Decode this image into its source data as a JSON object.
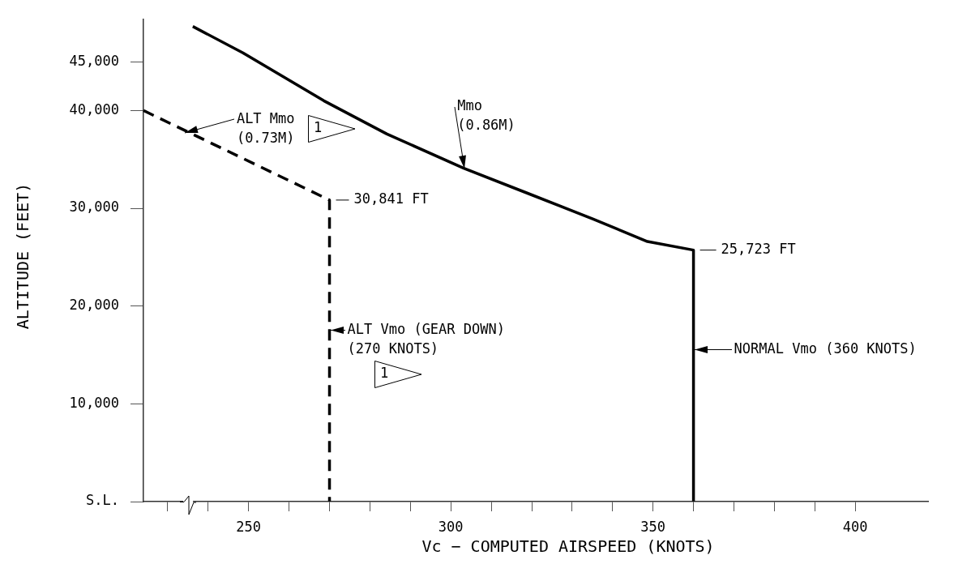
{
  "chart_data": {
    "type": "line",
    "xlabel": "Vc − COMPUTED AIRSPEED (KNOTS)",
    "ylabel": "ALTITUDE (FEET)",
    "xlim": [
      224,
      418
    ],
    "ylim": [
      0,
      49300
    ],
    "xticks": [
      {
        "value": 230,
        "label": null
      },
      {
        "value": 240,
        "label": null
      },
      250,
      {
        "value": 260,
        "label": null
      },
      {
        "value": 270,
        "label": null
      },
      {
        "value": 280,
        "label": null
      },
      {
        "value": 290,
        "label": null
      },
      300,
      {
        "value": 310,
        "label": null
      },
      {
        "value": 320,
        "label": null
      },
      {
        "value": 330,
        "label": null
      },
      {
        "value": 340,
        "label": null
      },
      350,
      {
        "value": 360,
        "label": null
      },
      {
        "value": 370,
        "label": null
      },
      {
        "value": 380,
        "label": null
      },
      {
        "value": 390,
        "label": null
      },
      400
    ],
    "yticks": [
      {
        "value": 0,
        "label": "S.L."
      },
      {
        "value": 10000,
        "label": "10,000"
      },
      {
        "value": 20000,
        "label": "20,000"
      },
      {
        "value": 30000,
        "label": "30,000"
      },
      {
        "value": 40000,
        "label": "40,000"
      },
      {
        "value": 45000,
        "label": "45,000"
      }
    ],
    "grid": false,
    "legend": false,
    "marker": "none",
    "series": [
      {
        "color": "#000000",
        "line_style": "solid",
        "x": [
          236.2,
          248.6,
          268.6,
          284.2,
          303.2,
          318.6,
          335.2,
          348.6,
          360,
          360
        ],
        "values": [
          48600,
          45900,
          41000,
          37600,
          34100,
          31600,
          28900,
          26600,
          25723,
          0
        ]
      },
      {
        "color": "#000000",
        "line_style": "dashed",
        "x": [
          224,
          270,
          270
        ],
        "values": [
          40000,
          30841,
          0
        ]
      }
    ],
    "annotations": [
      {
        "text": "ALT Mmo\n(0.73M)",
        "x": 234,
        "y": 37700
      },
      {
        "text": "Mmo\n(0.86M)",
        "x": 303.2,
        "y": 34070
      },
      {
        "text": "30,841 FT",
        "x": 270,
        "y": 30841
      },
      {
        "text": "25,723 FT",
        "x": 360,
        "y": 25723
      },
      {
        "text": "ALT Vmo (GEAR DOWN)\n(270 KNOTS)",
        "x": 270,
        "y": 17560
      },
      {
        "text": "NORMAL Vmo (360 KNOTS)",
        "x": 360,
        "y": 15530
      },
      "1",
      "1"
    ]
  }
}
